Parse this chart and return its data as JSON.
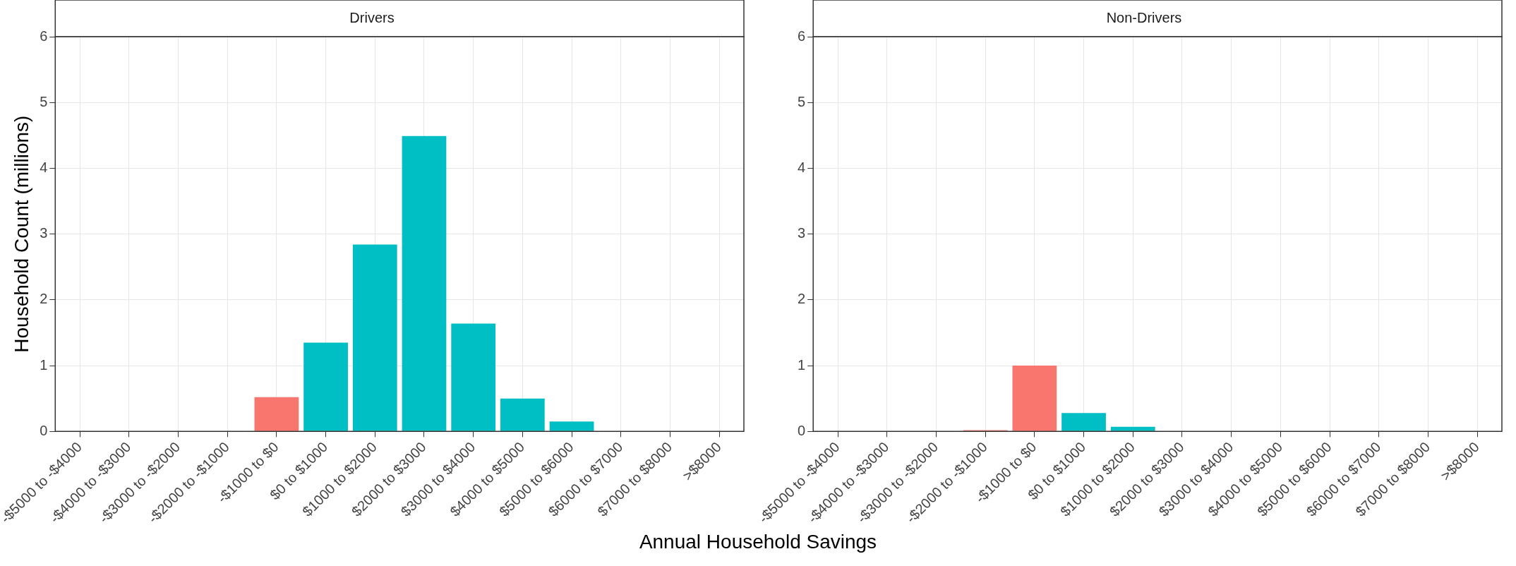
{
  "chart_data": [
    {
      "type": "bar",
      "title": "Drivers",
      "ylabel": "Household Count (millions)",
      "xlabel": "Annual Household Savings",
      "categories": [
        "-$5000 to -$4000",
        "-$4000 to -$3000",
        "-$3000 to -$2000",
        "-$2000 to -$1000",
        "-$1000 to $0",
        "$0 to $1000",
        "$1000 to $2000",
        "$2000 to $3000",
        "$3000 to $4000",
        "$4000 to $5000",
        "$5000 to $6000",
        "$6000 to $7000",
        "$7000 to $8000",
        ">$8000"
      ],
      "values": [
        0,
        0,
        0,
        0,
        0.52,
        1.35,
        2.84,
        4.49,
        1.64,
        0.5,
        0.15,
        0,
        0,
        0
      ],
      "colors": [
        "#f8766d",
        "#f8766d",
        "#f8766d",
        "#f8766d",
        "#f8766d",
        "#00bfc4",
        "#00bfc4",
        "#00bfc4",
        "#00bfc4",
        "#00bfc4",
        "#00bfc4",
        "#00bfc4",
        "#00bfc4",
        "#00bfc4"
      ],
      "ylim": [
        0,
        6
      ],
      "yticks": [
        0,
        1,
        2,
        3,
        4,
        5,
        6
      ],
      "grid": true
    },
    {
      "type": "bar",
      "title": "Non-Drivers",
      "categories": [
        "-$5000 to -$4000",
        "-$4000 to -$3000",
        "-$3000 to -$2000",
        "-$2000 to -$1000",
        "-$1000 to $0",
        "$0 to $1000",
        "$1000 to $2000",
        "$2000 to $3000",
        "$3000 to $4000",
        "$4000 to $5000",
        "$5000 to $6000",
        "$6000 to $7000",
        "$7000 to $8000",
        ">$8000"
      ],
      "values": [
        0,
        0,
        0,
        0.02,
        1.0,
        0.28,
        0.07,
        0,
        0,
        0,
        0,
        0,
        0,
        0
      ],
      "colors": [
        "#f8766d",
        "#f8766d",
        "#f8766d",
        "#f8766d",
        "#f8766d",
        "#00bfc4",
        "#00bfc4",
        "#00bfc4",
        "#00bfc4",
        "#00bfc4",
        "#00bfc4",
        "#00bfc4",
        "#00bfc4",
        "#00bfc4"
      ],
      "ylim": [
        0,
        6
      ],
      "yticks": [
        0,
        1,
        2,
        3,
        4,
        5,
        6
      ],
      "grid": true
    }
  ]
}
